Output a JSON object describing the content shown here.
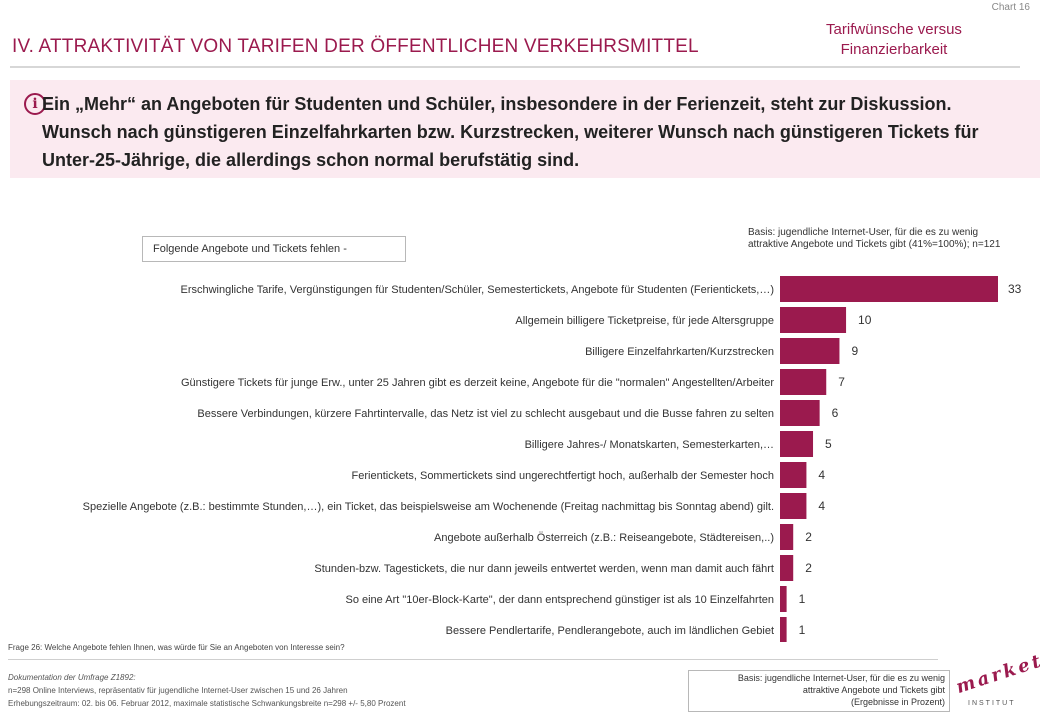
{
  "header": {
    "chart_no": "Chart 16",
    "title": "IV. ATTRAKTIVITÄT VON TARIFEN DER ÖFFENTLICHEN VERKEHRSMITTEL",
    "topic": "Tarifwünsche versus Finanzierbarkeit"
  },
  "banner": {
    "icon": "info-icon",
    "text": "Ein „Mehr“ an Angeboten für Studenten und Schüler, insbesondere in der Ferienzeit, steht zur Diskussion. Wunsch nach günstigeren Einzelfahrkarten bzw. Kurzstrecken, weiterer Wunsch nach günstigeren Tickets für Unter-25-Jährige, die allerdings schon normal berufstätig sind."
  },
  "subtitle": "Folgende Angebote und Tickets fehlen -",
  "basis_top": "Basis: jugendliche Internet-User, für die es zu wenig attraktive Angebote und Tickets gibt (41%=100%); n=121",
  "chart_data": {
    "type": "bar",
    "orientation": "horizontal",
    "bar_color": "#9b1a4e",
    "categories": [
      "Erschwingliche Tarife, Vergünstigungen für Studenten/Schüler, Semestertickets, Angebote für Studenten (Ferientickets,…)",
      "Allgemein billigere Ticketpreise, für jede Altersgruppe",
      "Billigere Einzelfahrkarten/Kurzstrecken",
      "Günstigere Tickets für junge Erw., unter 25 Jahren gibt es derzeit keine,  Angebote für die \"normalen\" Angestellten/Arbeiter",
      "Bessere Verbindungen, kürzere Fahrtintervalle,  das Netz ist viel zu schlecht ausgebaut und die Busse fahren zu selten",
      "Billigere Jahres-/ Monatskarten, Semesterkarten,…",
      "Ferientickets, Sommertickets sind ungerechtfertigt hoch, außerhalb der Semester hoch",
      "Spezielle Angebote (z.B.: bestimmte Stunden,…), ein Ticket, das beispielsweise am Wochenende (Freitag nachmittag bis Sonntag abend) gilt.",
      "Angebote außerhalb Österreich (z.B.: Reiseangebote, Städtereisen,..)",
      "Stunden-bzw. Tagestickets, die nur dann jeweils entwertet werden, wenn man damit auch fährt",
      "So eine Art \"10er-Block-Karte\", der dann entsprechend günstiger ist als 10 Einzelfahrten",
      "Bessere Pendlertarife, Pendlerangebote, auch im ländlichen Gebiet"
    ],
    "values": [
      33,
      10,
      9,
      7,
      6,
      5,
      4,
      4,
      2,
      2,
      1,
      1
    ],
    "xlim": [
      0,
      33
    ]
  },
  "question": "Frage 26:  Welche Angebote fehlen Ihnen, was würde für Sie an Angeboten von Interesse sein?",
  "doc": {
    "heading": "Dokumentation der Umfrage Z1892:",
    "line1": "n=298 Online Interviews, repräsentativ für jugendliche Internet-User zwischen 15 und 26 Jahren",
    "line2": "Erhebungszeitraum: 02. bis 06. Februar 2012, maximale statistische Schwankungsbreite n=298 +/- 5,80 Prozent"
  },
  "basis_bottom": {
    "line1": "Basis: jugendliche Internet-User, für die es zu wenig",
    "line2": "attraktive Angebote und Tickets gibt",
    "line3": "(Ergebnisse in Prozent)"
  },
  "logo": {
    "word": "market",
    "registered": "®",
    "sub": "INSTITUT"
  }
}
